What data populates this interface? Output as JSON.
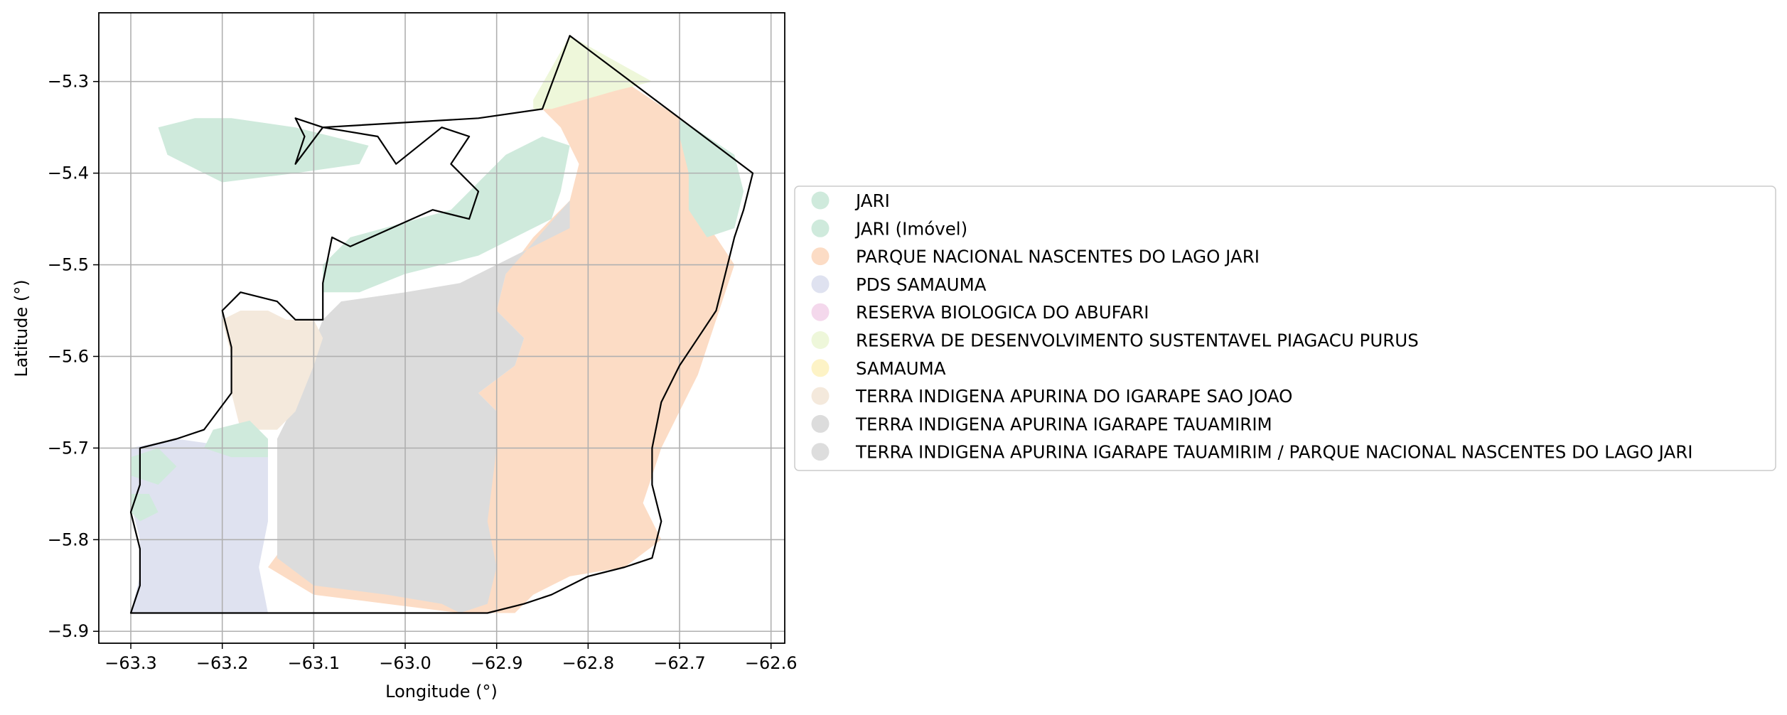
{
  "chart_data": {
    "type": "map",
    "xlabel": "Longitude (°)",
    "ylabel": "Latitude (°)",
    "xlim": [
      -63.335,
      -62.585
    ],
    "ylim": [
      -5.913,
      -5.225
    ],
    "xticks": [
      -63.3,
      -63.2,
      -63.1,
      -63.0,
      -62.9,
      -62.8,
      -62.7,
      -62.6
    ],
    "xtick_labels": [
      "−63.3",
      "−63.2",
      "−63.1",
      "−63.0",
      "−62.9",
      "−62.8",
      "−62.7",
      "−62.6"
    ],
    "yticks": [
      -5.3,
      -5.4,
      -5.5,
      -5.6,
      -5.7,
      -5.8,
      -5.9
    ],
    "ytick_labels": [
      "−5.3",
      "−5.4",
      "−5.5",
      "−5.6",
      "−5.7",
      "−5.8",
      "−5.9"
    ],
    "grid": true,
    "legend_position": "right",
    "categories": [
      {
        "name": "JARI",
        "color": "#cfeadc"
      },
      {
        "name": "JARI (Imóvel)",
        "color": "#cfeadc"
      },
      {
        "name": "PARQUE NACIONAL NASCENTES DO LAGO JARI",
        "color": "#fcdcc5"
      },
      {
        "name": "PDS SAMAUMA",
        "color": "#dfe2f0"
      },
      {
        "name": "RESERVA BIOLOGICA DO ABUFARI",
        "color": "#f4d8ec"
      },
      {
        "name": "RESERVA DE DESENVOLVIMENTO SUSTENTAVEL PIAGACU PURUS",
        "color": "#eef7da"
      },
      {
        "name": "SAMAUMA",
        "color": "#fdf3c6"
      },
      {
        "name": "TERRA INDIGENA APURINA DO IGARAPE SAO JOAO",
        "color": "#f4e9dc"
      },
      {
        "name": "TERRA INDIGENA APURINA IGARAPE TAUAMIRIM",
        "color": "#dcdcdc"
      },
      {
        "name": "TERRA INDIGENA APURINA IGARAPE TAUAMIRIM / PARQUE NACIONAL NASCENTES DO LAGO JARI",
        "color": "#dddddd"
      }
    ],
    "regions": [
      {
        "category": 2,
        "coords": [
          [
            -62.86,
            -5.32
          ],
          [
            -62.76,
            -5.3
          ],
          [
            -62.7,
            -5.34
          ],
          [
            -62.68,
            -5.4
          ],
          [
            -62.69,
            -5.43
          ],
          [
            -62.66,
            -5.47
          ],
          [
            -62.64,
            -5.5
          ],
          [
            -62.66,
            -5.56
          ],
          [
            -62.68,
            -5.62
          ],
          [
            -62.7,
            -5.66
          ],
          [
            -62.72,
            -5.7
          ],
          [
            -62.74,
            -5.76
          ],
          [
            -62.72,
            -5.8
          ],
          [
            -62.76,
            -5.83
          ],
          [
            -62.82,
            -5.84
          ],
          [
            -62.86,
            -5.86
          ],
          [
            -62.88,
            -5.88
          ],
          [
            -62.94,
            -5.88
          ],
          [
            -63.02,
            -5.87
          ],
          [
            -63.1,
            -5.86
          ],
          [
            -63.15,
            -5.83
          ],
          [
            -63.12,
            -5.79
          ],
          [
            -63.04,
            -5.78
          ],
          [
            -62.94,
            -5.76
          ],
          [
            -62.9,
            -5.7
          ],
          [
            -62.9,
            -5.66
          ],
          [
            -62.92,
            -5.64
          ],
          [
            -62.88,
            -5.61
          ],
          [
            -62.87,
            -5.58
          ],
          [
            -62.9,
            -5.55
          ],
          [
            -62.89,
            -5.51
          ],
          [
            -62.86,
            -5.47
          ],
          [
            -62.82,
            -5.43
          ],
          [
            -62.81,
            -5.39
          ],
          [
            -62.83,
            -5.35
          ]
        ]
      },
      {
        "category": 8,
        "coords": [
          [
            -62.9,
            -5.5
          ],
          [
            -62.82,
            -5.46
          ],
          [
            -62.82,
            -5.43
          ],
          [
            -62.89,
            -5.51
          ],
          [
            -62.9,
            -5.55
          ],
          [
            -62.87,
            -5.58
          ],
          [
            -62.88,
            -5.61
          ],
          [
            -62.92,
            -5.64
          ],
          [
            -62.9,
            -5.66
          ],
          [
            -62.9,
            -5.7
          ],
          [
            -62.91,
            -5.78
          ],
          [
            -62.9,
            -5.83
          ],
          [
            -62.91,
            -5.87
          ],
          [
            -62.94,
            -5.88
          ],
          [
            -62.96,
            -5.87
          ],
          [
            -63.02,
            -5.86
          ],
          [
            -63.1,
            -5.85
          ],
          [
            -63.14,
            -5.82
          ],
          [
            -63.14,
            -5.76
          ],
          [
            -63.14,
            -5.69
          ],
          [
            -63.12,
            -5.65
          ],
          [
            -63.11,
            -5.61
          ],
          [
            -63.09,
            -5.56
          ],
          [
            -63.07,
            -5.54
          ],
          [
            -63.0,
            -5.53
          ],
          [
            -62.94,
            -5.52
          ]
        ]
      },
      {
        "category": 3,
        "coords": [
          [
            -63.3,
            -5.7
          ],
          [
            -63.25,
            -5.69
          ],
          [
            -63.18,
            -5.7
          ],
          [
            -63.15,
            -5.71
          ],
          [
            -63.15,
            -5.78
          ],
          [
            -63.16,
            -5.83
          ],
          [
            -63.15,
            -5.88
          ],
          [
            -63.3,
            -5.88
          ],
          [
            -63.29,
            -5.84
          ],
          [
            -63.29,
            -5.8
          ],
          [
            -63.3,
            -5.76
          ]
        ]
      },
      {
        "category": 7,
        "coords": [
          [
            -63.2,
            -5.56
          ],
          [
            -63.18,
            -5.55
          ],
          [
            -63.15,
            -5.55
          ],
          [
            -63.13,
            -5.56
          ],
          [
            -63.1,
            -5.56
          ],
          [
            -63.09,
            -5.58
          ],
          [
            -63.1,
            -5.61
          ],
          [
            -63.12,
            -5.66
          ],
          [
            -63.14,
            -5.68
          ],
          [
            -63.18,
            -5.68
          ],
          [
            -63.19,
            -5.64
          ],
          [
            -63.19,
            -5.6
          ]
        ]
      },
      {
        "category": 0,
        "coords": [
          [
            -63.06,
            -5.47
          ],
          [
            -62.95,
            -5.44
          ],
          [
            -62.89,
            -5.38
          ],
          [
            -62.85,
            -5.36
          ],
          [
            -62.82,
            -5.37
          ],
          [
            -62.83,
            -5.42
          ],
          [
            -62.84,
            -5.45
          ],
          [
            -62.92,
            -5.49
          ],
          [
            -63.0,
            -5.51
          ],
          [
            -63.05,
            -5.53
          ],
          [
            -63.09,
            -5.53
          ],
          [
            -63.09,
            -5.5
          ]
        ]
      },
      {
        "category": 0,
        "coords": [
          [
            -63.27,
            -5.35
          ],
          [
            -63.23,
            -5.34
          ],
          [
            -63.19,
            -5.34
          ],
          [
            -63.12,
            -5.35
          ],
          [
            -63.08,
            -5.36
          ],
          [
            -63.04,
            -5.37
          ],
          [
            -63.05,
            -5.39
          ],
          [
            -63.12,
            -5.4
          ],
          [
            -63.2,
            -5.41
          ],
          [
            -63.26,
            -5.38
          ]
        ]
      },
      {
        "category": 0,
        "coords": [
          [
            -62.7,
            -5.34
          ],
          [
            -62.64,
            -5.38
          ],
          [
            -62.63,
            -5.42
          ],
          [
            -62.64,
            -5.46
          ],
          [
            -62.67,
            -5.47
          ],
          [
            -62.69,
            -5.44
          ],
          [
            -62.69,
            -5.4
          ],
          [
            -62.7,
            -5.36
          ]
        ]
      },
      {
        "category": 0,
        "coords": [
          [
            -63.21,
            -5.68
          ],
          [
            -63.17,
            -5.67
          ],
          [
            -63.15,
            -5.69
          ],
          [
            -63.15,
            -5.71
          ],
          [
            -63.19,
            -5.71
          ],
          [
            -63.22,
            -5.7
          ]
        ]
      },
      {
        "category": 0,
        "coords": [
          [
            -63.3,
            -5.71
          ],
          [
            -63.27,
            -5.7
          ],
          [
            -63.25,
            -5.72
          ],
          [
            -63.27,
            -5.74
          ],
          [
            -63.3,
            -5.73
          ]
        ]
      },
      {
        "category": 0,
        "coords": [
          [
            -63.3,
            -5.75
          ],
          [
            -63.28,
            -5.75
          ],
          [
            -63.27,
            -5.77
          ],
          [
            -63.29,
            -5.78
          ],
          [
            -63.3,
            -5.77
          ]
        ]
      },
      {
        "category": 5,
        "coords": [
          [
            -62.82,
            -5.25
          ],
          [
            -62.73,
            -5.3
          ],
          [
            -62.77,
            -5.31
          ],
          [
            -62.84,
            -5.33
          ],
          [
            -62.86,
            -5.33
          ],
          [
            -62.86,
            -5.32
          ]
        ]
      }
    ],
    "boundary": [
      [
        -62.82,
        -5.25
      ],
      [
        -62.62,
        -5.4
      ],
      [
        -62.63,
        -5.44
      ],
      [
        -62.64,
        -5.47
      ],
      [
        -62.65,
        -5.51
      ],
      [
        -62.66,
        -5.55
      ],
      [
        -62.68,
        -5.58
      ],
      [
        -62.7,
        -5.61
      ],
      [
        -62.72,
        -5.65
      ],
      [
        -62.73,
        -5.7
      ],
      [
        -62.73,
        -5.74
      ],
      [
        -62.72,
        -5.78
      ],
      [
        -62.73,
        -5.82
      ],
      [
        -62.76,
        -5.83
      ],
      [
        -62.8,
        -5.84
      ],
      [
        -62.84,
        -5.86
      ],
      [
        -62.87,
        -5.87
      ],
      [
        -62.91,
        -5.88
      ],
      [
        -63.0,
        -5.88
      ],
      [
        -63.1,
        -5.88
      ],
      [
        -63.2,
        -5.88
      ],
      [
        -63.3,
        -5.88
      ],
      [
        -63.29,
        -5.85
      ],
      [
        -63.29,
        -5.81
      ],
      [
        -63.3,
        -5.77
      ],
      [
        -63.29,
        -5.74
      ],
      [
        -63.29,
        -5.7
      ],
      [
        -63.25,
        -5.69
      ],
      [
        -63.22,
        -5.68
      ],
      [
        -63.19,
        -5.64
      ],
      [
        -63.19,
        -5.59
      ],
      [
        -63.2,
        -5.55
      ],
      [
        -63.18,
        -5.53
      ],
      [
        -63.14,
        -5.54
      ],
      [
        -63.12,
        -5.56
      ],
      [
        -63.09,
        -5.56
      ],
      [
        -63.09,
        -5.52
      ],
      [
        -63.08,
        -5.47
      ],
      [
        -63.06,
        -5.48
      ],
      [
        -62.97,
        -5.44
      ],
      [
        -62.93,
        -5.45
      ],
      [
        -62.92,
        -5.42
      ],
      [
        -62.95,
        -5.39
      ],
      [
        -62.93,
        -5.36
      ],
      [
        -62.96,
        -5.35
      ],
      [
        -63.01,
        -5.39
      ],
      [
        -63.03,
        -5.36
      ],
      [
        -63.09,
        -5.35
      ],
      [
        -63.12,
        -5.34
      ],
      [
        -63.11,
        -5.36
      ],
      [
        -63.12,
        -5.39
      ],
      [
        -63.09,
        -5.35
      ],
      [
        -62.92,
        -5.34
      ],
      [
        -62.85,
        -5.33
      ]
    ]
  }
}
